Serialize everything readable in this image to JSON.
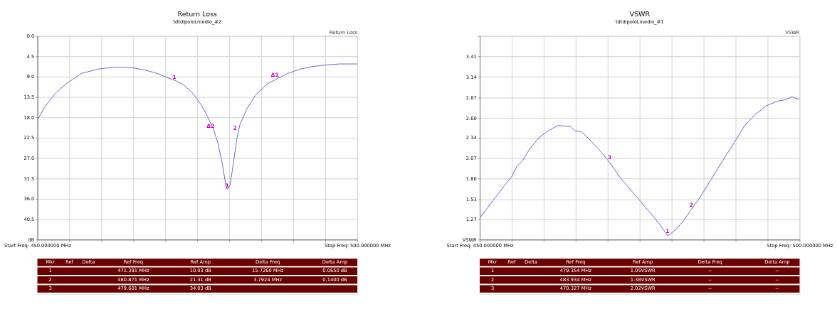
{
  "chart_data": [
    {
      "type": "line",
      "title": "Return Loss",
      "subtitle": "tdtdipoloLmedio_#2",
      "legend": false,
      "grid": true,
      "marker": "none",
      "xlim": [
        450,
        500
      ],
      "xticks": [
        {
          "value": 450,
          "label": "Start Freq: 450.000000 MHz"
        },
        {
          "value": 455,
          "label": null
        },
        {
          "value": 460,
          "label": null
        },
        {
          "value": 465,
          "label": null
        },
        {
          "value": 470,
          "label": null
        },
        {
          "value": 475,
          "label": null
        },
        {
          "value": 480,
          "label": null
        },
        {
          "value": 485,
          "label": null
        },
        {
          "value": 490,
          "label": null
        },
        {
          "value": 495,
          "label": null
        },
        {
          "value": 500,
          "label": "Stop Freq: 500.000000 MHz"
        }
      ],
      "ylim": [
        45,
        0
      ],
      "yticks": [
        {
          "value": 0,
          "label": "0.0"
        },
        4.5,
        {
          "value": 9,
          "label": "9.0"
        },
        13.5,
        {
          "value": 18,
          "label": "18.0"
        },
        22.5,
        {
          "value": 27,
          "label": "27.0"
        },
        31.5,
        {
          "value": 36,
          "label": "36.0"
        },
        40.5,
        {
          "value": 45,
          "label": "dB"
        }
      ],
      "x": [
        450,
        451.09,
        452.79,
        454.48,
        456.86,
        459.58,
        462.3,
        464.67,
        466.71,
        468.75,
        470.45,
        471.64,
        472.83,
        474.18,
        475.54,
        476.56,
        477.58,
        478.26,
        478.94,
        479.45,
        479.69,
        480.13,
        480.64,
        481.15,
        481.66,
        482.68,
        484.04,
        485.73,
        487.26,
        489.13,
        491.17,
        492.87,
        495.24,
        497.28,
        500
      ],
      "series": [
        {
          "color": "#6464c8",
          "values": [
            18.6,
            15.8,
            12.7,
            10.6,
            8.3,
            7.3,
            6.9,
            7.0,
            7.5,
            8.3,
            9.3,
            9.9,
            10.8,
            12.5,
            15.1,
            17.7,
            20.8,
            23.9,
            28.6,
            32.9,
            33.9,
            32.9,
            28.1,
            22.9,
            19.6,
            16.3,
            13.2,
            10.8,
            9.6,
            8.3,
            7.3,
            6.8,
            6.4,
            6.2,
            6.2
          ]
        }
      ],
      "annotations": [
        "Return Loss",
        {
          "text": "1",
          "x": 471.391,
          "y": 10.03
        },
        {
          "text": "Δ1",
          "x": 487.117,
          "y": 9.6
        },
        {
          "text": "2",
          "x": 480.871,
          "y": 21.31
        },
        {
          "text": "Δ2",
          "x": 477.079,
          "y": 20.9
        },
        {
          "text": "3",
          "x": 479.6,
          "y": 34.03
        },
        "Mkr",
        "Ref",
        "Delta",
        "Ref Freq",
        "Ref Amp",
        "Delta Freq",
        "Delta Amp",
        "1",
        "471.391 MHz",
        "10.03 dB",
        "15.7260 MHz",
        "0.0650 dB",
        "2",
        "480.871 MHz",
        "21.31 dB",
        "3.7924 MHz",
        "0.1400 dB",
        "3",
        "479.601 MHz",
        "34.03 dB"
      ]
    },
    {
      "type": "line",
      "title": "VSWR",
      "subtitle": "tdtdipoloLmedio_#1",
      "legend": false,
      "grid": true,
      "marker": "none",
      "xlim": [
        450,
        500
      ],
      "xticks": [
        {
          "value": 450,
          "label": "Start Freq: 450.000000 MHz"
        },
        {
          "value": 455,
          "label": null
        },
        {
          "value": 460,
          "label": null
        },
        {
          "value": 465,
          "label": null
        },
        {
          "value": 470,
          "label": null
        },
        {
          "value": 475,
          "label": null
        },
        {
          "value": 480,
          "label": null
        },
        {
          "value": 485,
          "label": null
        },
        {
          "value": 490,
          "label": null
        },
        {
          "value": 495,
          "label": null
        },
        {
          "value": 500,
          "label": "Stop Freq: 500.000000 MHz"
        }
      ],
      "ylim": [
        1.0,
        3.68
      ],
      "yticks": [
        {
          "value": 1.0,
          "label": "VSWR"
        },
        1.27,
        1.53,
        {
          "value": 1.8,
          "label": "1.80"
        },
        2.07,
        2.34,
        {
          "value": 2.6,
          "label": "2.60"
        },
        2.87,
        3.14,
        3.41,
        {
          "value": 3.68,
          "label": null
        }
      ],
      "x": [
        450.07,
        451.75,
        453.77,
        454.94,
        455.78,
        456.62,
        457.8,
        459.14,
        460.49,
        462.17,
        464.19,
        464.86,
        465.87,
        467.04,
        468.56,
        470.07,
        471.92,
        473.94,
        475.96,
        477.97,
        479.39,
        480.5,
        481.68,
        483.02,
        484.7,
        486.38,
        488.06,
        489.74,
        491.42,
        493.1,
        494.78,
        496.46,
        497.81,
        498.82,
        500
      ],
      "series": [
        {
          "color": "#6464c8",
          "values": [
            1.29,
            1.48,
            1.7,
            1.82,
            1.96,
            2.03,
            2.19,
            2.33,
            2.42,
            2.5,
            2.49,
            2.43,
            2.42,
            2.33,
            2.19,
            2.04,
            1.82,
            1.62,
            1.42,
            1.22,
            1.05,
            1.12,
            1.23,
            1.39,
            1.59,
            1.82,
            2.05,
            2.27,
            2.5,
            2.65,
            2.76,
            2.82,
            2.84,
            2.88,
            2.84
          ]
        }
      ],
      "annotations": [
        "VSWR",
        {
          "text": "1",
          "x": 479.354,
          "y": 1.05
        },
        {
          "text": "2",
          "x": 483.1,
          "y": 1.4
        },
        {
          "text": "3",
          "x": 470.327,
          "y": 2.02
        },
        "Mkr",
        "Ref",
        "Delta",
        "Ref Freq",
        "Ref Amp",
        "Delta Freq",
        "Delta Amp",
        "1",
        "479.354 MHz",
        "1.05VSWR",
        "--",
        "--",
        "2",
        "483.934 MHz",
        "1.38VSWR",
        "--",
        "--",
        "3",
        "470.327 MHz",
        "2.02VSWR",
        "--",
        "--"
      ]
    }
  ]
}
